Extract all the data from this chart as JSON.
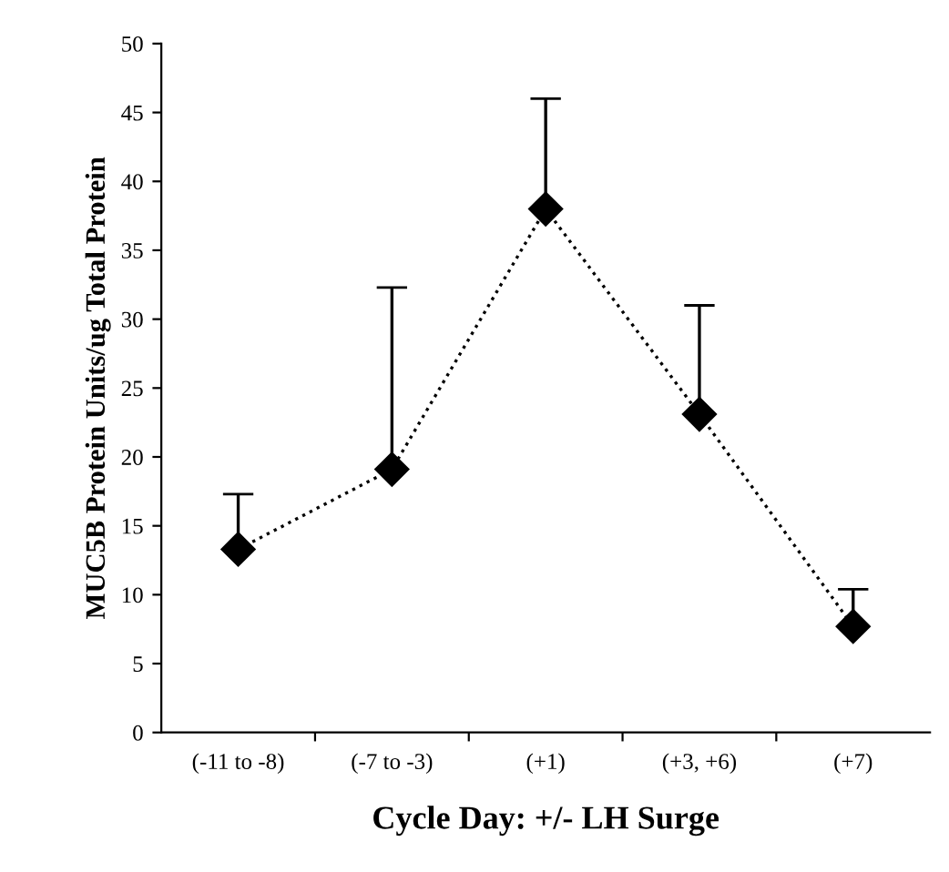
{
  "chart_data": {
    "type": "line",
    "xlabel": "Cycle Day: +/- LH Surge",
    "ylabel": "MUC5B Protein Units/ug Total Protein",
    "categories": [
      "(-11 to -8)",
      "(-7 to -3)",
      "(+1)",
      "(+3, +6)",
      "(+7)"
    ],
    "series": [
      {
        "color": "#000000",
        "values": [
          13.3,
          19.1,
          38.0,
          23.1,
          7.7
        ],
        "errors": [
          [
            13.3,
            17.3
          ],
          [
            19.1,
            32.3
          ],
          [
            38.0,
            46.0
          ],
          [
            23.1,
            31.0
          ],
          [
            7.7,
            10.4
          ]
        ]
      }
    ],
    "ylim": [
      0,
      50
    ],
    "yticks": [
      0,
      5,
      10,
      15,
      20,
      25,
      30,
      35,
      40,
      45,
      50
    ],
    "marker": "diamond",
    "line_style": "dotted",
    "grid": false
  }
}
